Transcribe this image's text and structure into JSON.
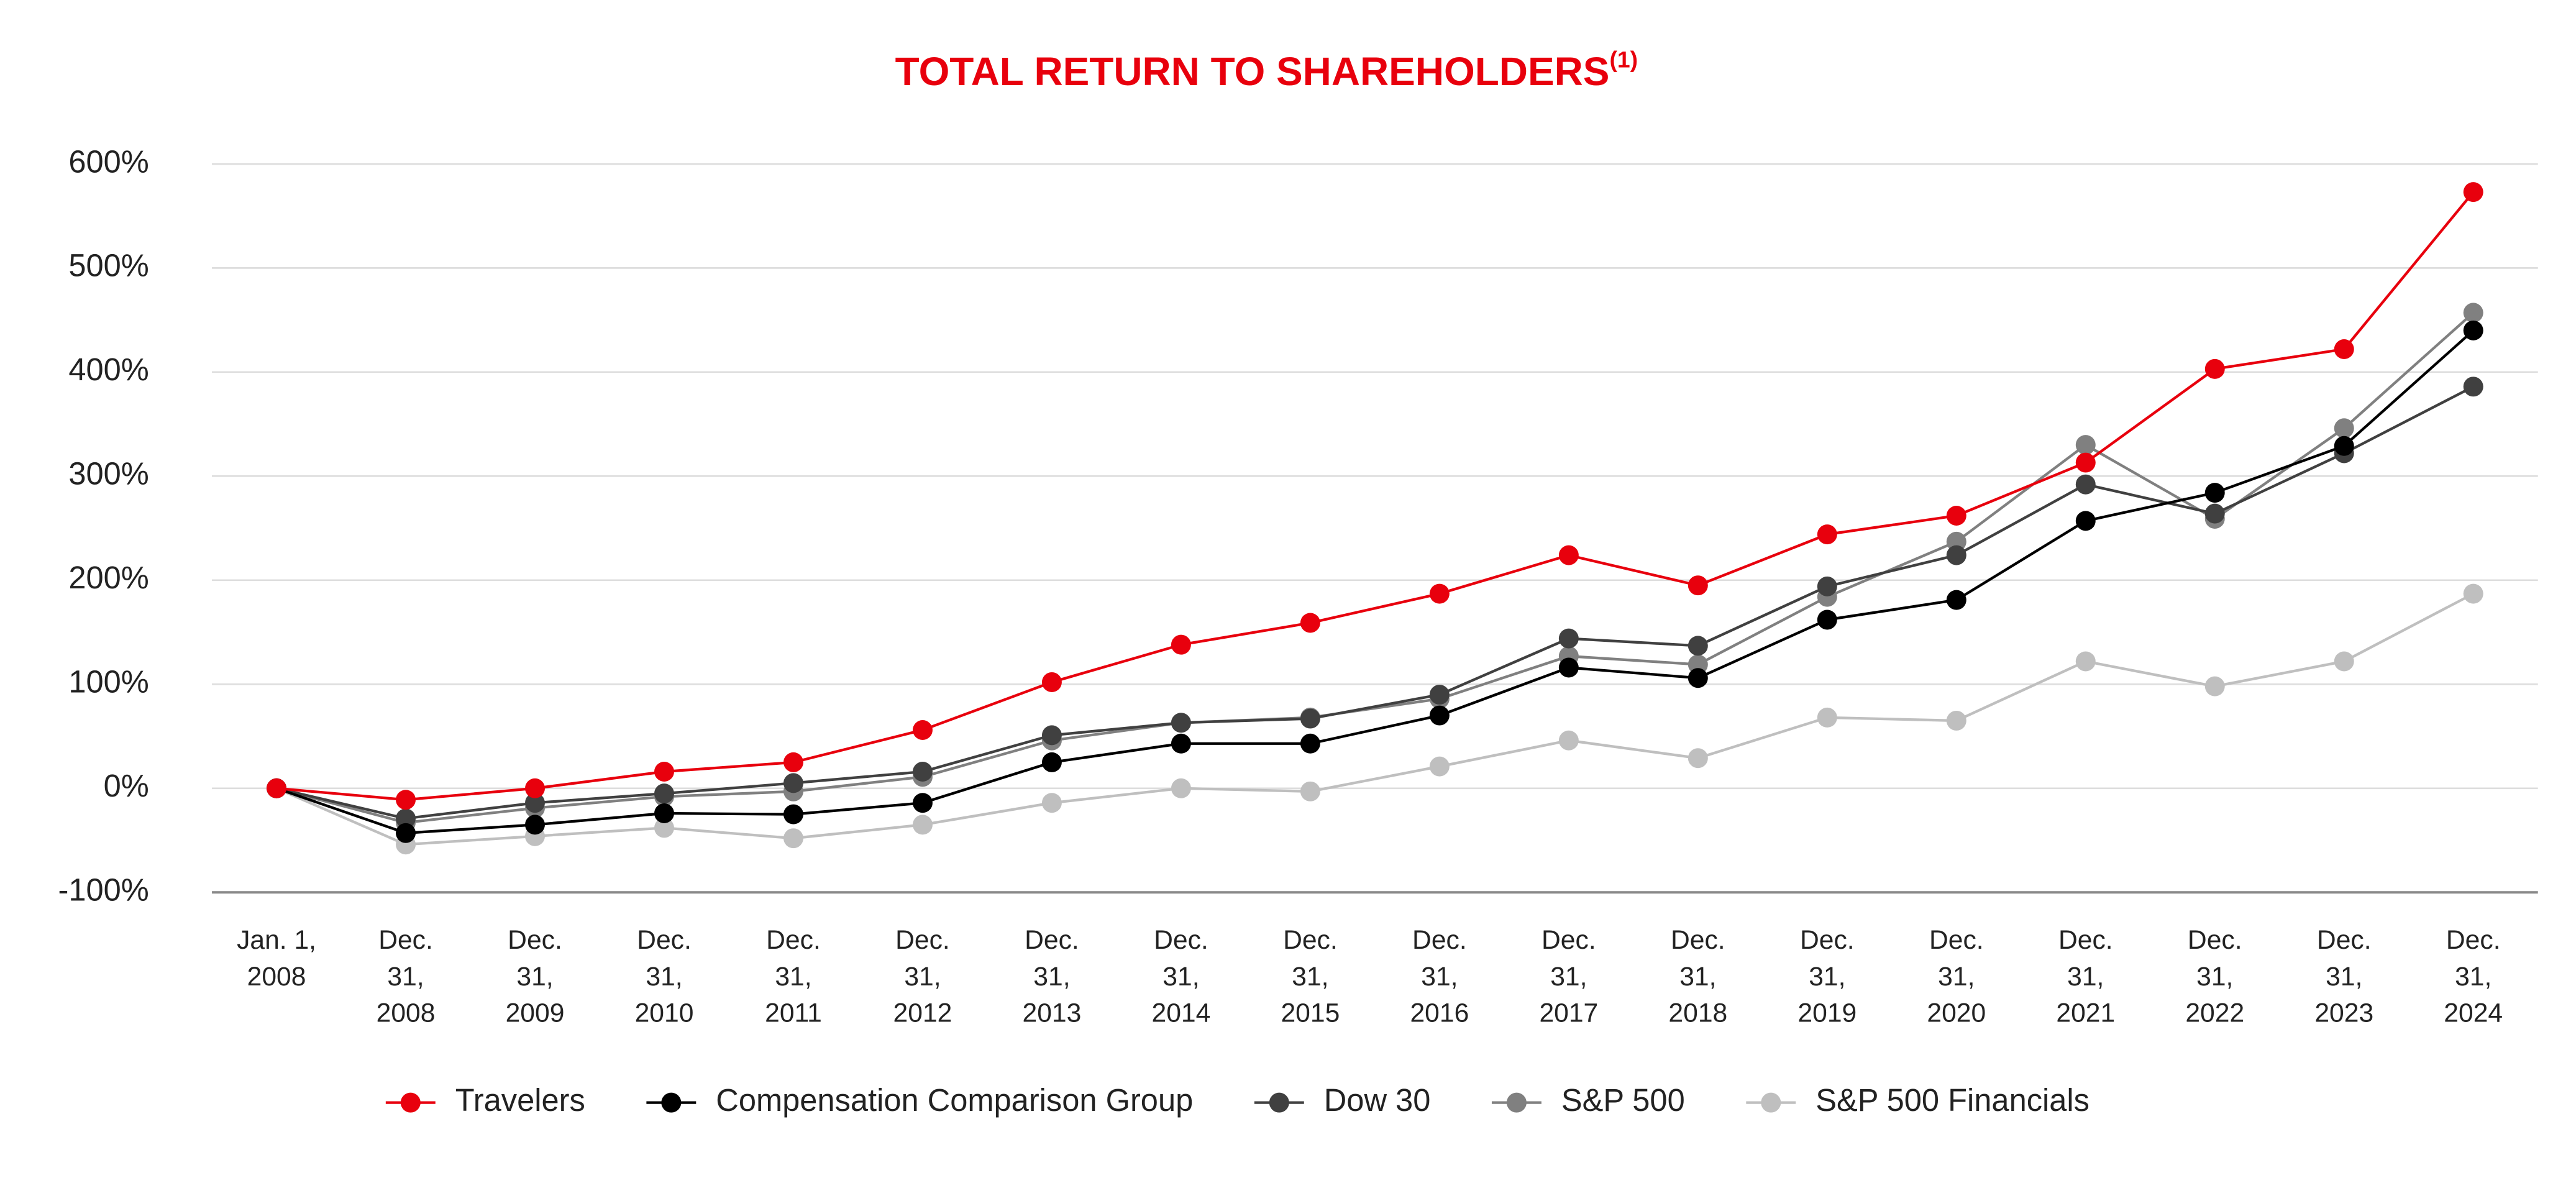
{
  "chart_data": {
    "type": "line",
    "title": "TOTAL RETURN TO SHAREHOLDERS",
    "title_note": "(1)",
    "title_color": "#e8000d",
    "categories": [
      "Jan. 1,\n2008",
      "Dec.\n31,\n2008",
      "Dec.\n31,\n2009",
      "Dec.\n31,\n2010",
      "Dec.\n31,\n2011",
      "Dec.\n31,\n2012",
      "Dec.\n31,\n2013",
      "Dec.\n31,\n2014",
      "Dec.\n31,\n2015",
      "Dec.\n31,\n2016",
      "Dec.\n31,\n2017",
      "Dec.\n31,\n2018",
      "Dec.\n31,\n2019",
      "Dec.\n31,\n2020",
      "Dec.\n31,\n2021",
      "Dec.\n31,\n2022",
      "Dec.\n31,\n2023",
      "Dec.\n31,\n2024"
    ],
    "series": [
      {
        "name": "Travelers",
        "color": "#e8000d",
        "values": [
          0,
          -11,
          0,
          16,
          25,
          56,
          102,
          138,
          159,
          187,
          224,
          195,
          244,
          262,
          313,
          403,
          422,
          573
        ]
      },
      {
        "name": "Compensation Comparison Group",
        "color": "#000000",
        "values": [
          0,
          -43,
          -35,
          -24,
          -25,
          -14,
          25,
          43,
          43,
          70,
          116,
          106,
          162,
          181,
          257,
          284,
          329,
          440
        ]
      },
      {
        "name": "Dow 30",
        "color": "#404040",
        "values": [
          0,
          -29,
          -14,
          -5,
          5,
          16,
          51,
          63,
          67,
          90,
          144,
          137,
          194,
          224,
          292,
          264,
          322,
          386
        ]
      },
      {
        "name": "S&P 500",
        "color": "#808080",
        "values": [
          0,
          -33,
          -19,
          -8,
          -3,
          11,
          46,
          63,
          68,
          86,
          127,
          119,
          184,
          237,
          330,
          259,
          346,
          457
        ]
      },
      {
        "name": "S&P 500 Financials",
        "color": "#bfbfbf",
        "values": [
          0,
          -54,
          -46,
          -38,
          -48,
          -35,
          -14,
          0,
          -3,
          21,
          46,
          29,
          68,
          65,
          122,
          98,
          122,
          187
        ]
      }
    ],
    "ylim": [
      -100,
      600
    ],
    "yticks": [
      {
        "value": -100,
        "label": "-100%"
      },
      {
        "value": 0,
        "label": "0%"
      },
      {
        "value": 100,
        "label": "100%"
      },
      {
        "value": 200,
        "label": "200%"
      },
      {
        "value": 300,
        "label": "300%"
      },
      {
        "value": 400,
        "label": "400%"
      },
      {
        "value": 500,
        "label": "500%"
      },
      {
        "value": 600,
        "label": "600%"
      }
    ],
    "grid": true,
    "legend": "bottom"
  }
}
